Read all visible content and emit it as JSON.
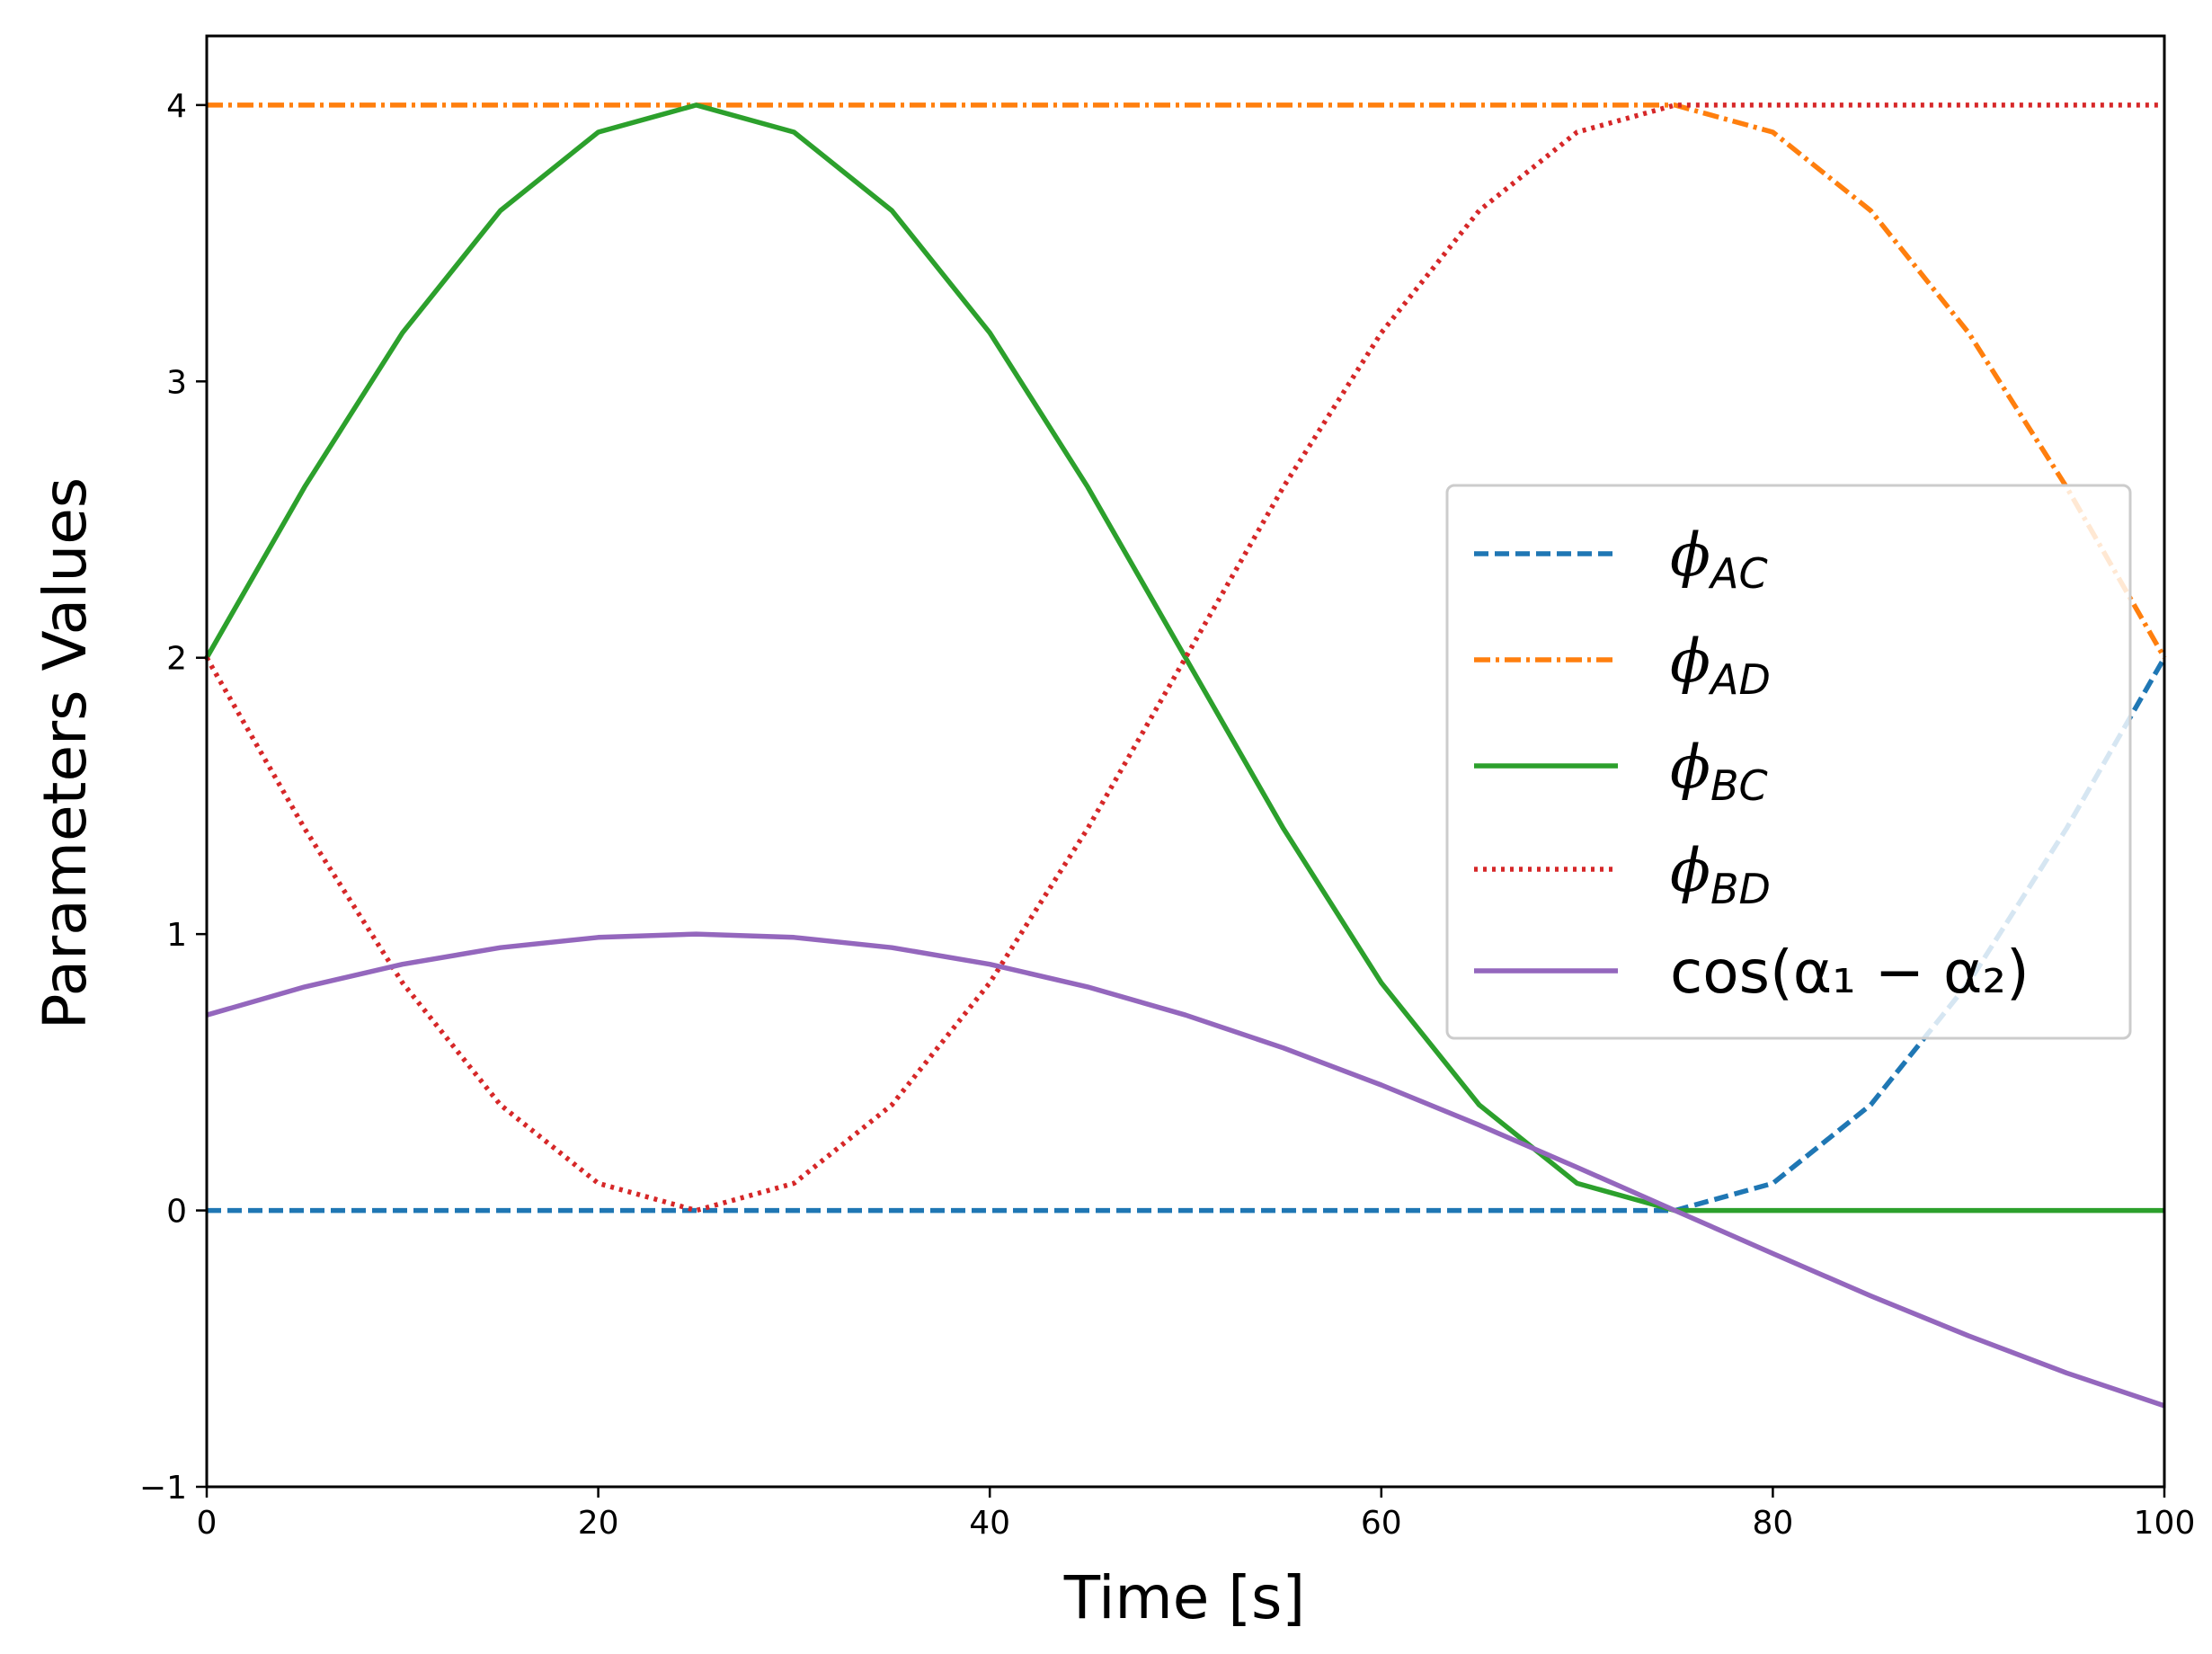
{
  "chart_data": {
    "type": "line",
    "xlabel": "Time [s]",
    "ylabel": "Parameters Values",
    "xlim": [
      0,
      100
    ],
    "ylim": [
      -1,
      4.25
    ],
    "xticks": [
      0,
      20,
      40,
      60,
      80,
      100
    ],
    "yticks": [
      -1,
      0,
      1,
      2,
      3,
      4
    ],
    "xtick_labels": [
      "0",
      "20",
      "40",
      "60",
      "80",
      "100"
    ],
    "ytick_labels": [
      "−1",
      "0",
      "1",
      "2",
      "3",
      "4"
    ],
    "grid": false,
    "legend_position": "center-right",
    "legend": [
      {
        "key": "ac",
        "symbol": "ϕ",
        "sub": "AC"
      },
      {
        "key": "ad",
        "symbol": "ϕ",
        "sub": "AD"
      },
      {
        "key": "bc",
        "symbol": "ϕ",
        "sub": "BC"
      },
      {
        "key": "bd",
        "symbol": "ϕ",
        "sub": "BD"
      },
      {
        "key": "cos",
        "label": "cos(α₁ − α₂)"
      }
    ],
    "x": [
      0,
      5,
      10,
      15,
      20,
      25,
      30,
      35,
      40,
      45,
      50,
      55,
      60,
      65,
      70,
      75,
      80,
      85,
      90,
      95,
      100
    ],
    "series": [
      {
        "name": "phi_AC",
        "color": "#1f77b4",
        "style": "dashed",
        "values": [
          0,
          0,
          0,
          0,
          0,
          0,
          0,
          0,
          0,
          0,
          0,
          0,
          0,
          0,
          0,
          0,
          0.098,
          0.382,
          0.824,
          1.382,
          2.0
        ]
      },
      {
        "name": "phi_AD",
        "color": "#ff7f0e",
        "style": "dashdot",
        "values": [
          4,
          4,
          4,
          4,
          4,
          4,
          4,
          4,
          4,
          4,
          4,
          4,
          4,
          4,
          4,
          4,
          3.902,
          3.618,
          3.176,
          2.618,
          2.0
        ]
      },
      {
        "name": "phi_BC",
        "color": "#2ca02c",
        "style": "solid",
        "values": [
          2.0,
          2.618,
          3.176,
          3.618,
          3.902,
          4.0,
          3.902,
          3.618,
          3.176,
          2.618,
          2.0,
          1.382,
          0.824,
          0.382,
          0.098,
          0,
          0,
          0,
          0,
          0,
          0
        ]
      },
      {
        "name": "phi_BD",
        "color": "#d62728",
        "style": "dotted",
        "values": [
          2.0,
          1.382,
          0.824,
          0.382,
          0.098,
          0,
          0.098,
          0.382,
          0.824,
          1.382,
          2.0,
          2.618,
          3.176,
          3.618,
          3.902,
          4.0,
          4,
          4,
          4,
          4,
          4
        ]
      },
      {
        "name": "cos(alpha1 - alpha2)",
        "color": "#9467bd",
        "style": "solid",
        "values": [
          0.707,
          0.809,
          0.891,
          0.951,
          0.988,
          1.0,
          0.988,
          0.951,
          0.891,
          0.809,
          0.707,
          0.588,
          0.454,
          0.309,
          0.156,
          0.0,
          -0.156,
          -0.309,
          -0.454,
          -0.588,
          -0.707
        ]
      }
    ]
  }
}
